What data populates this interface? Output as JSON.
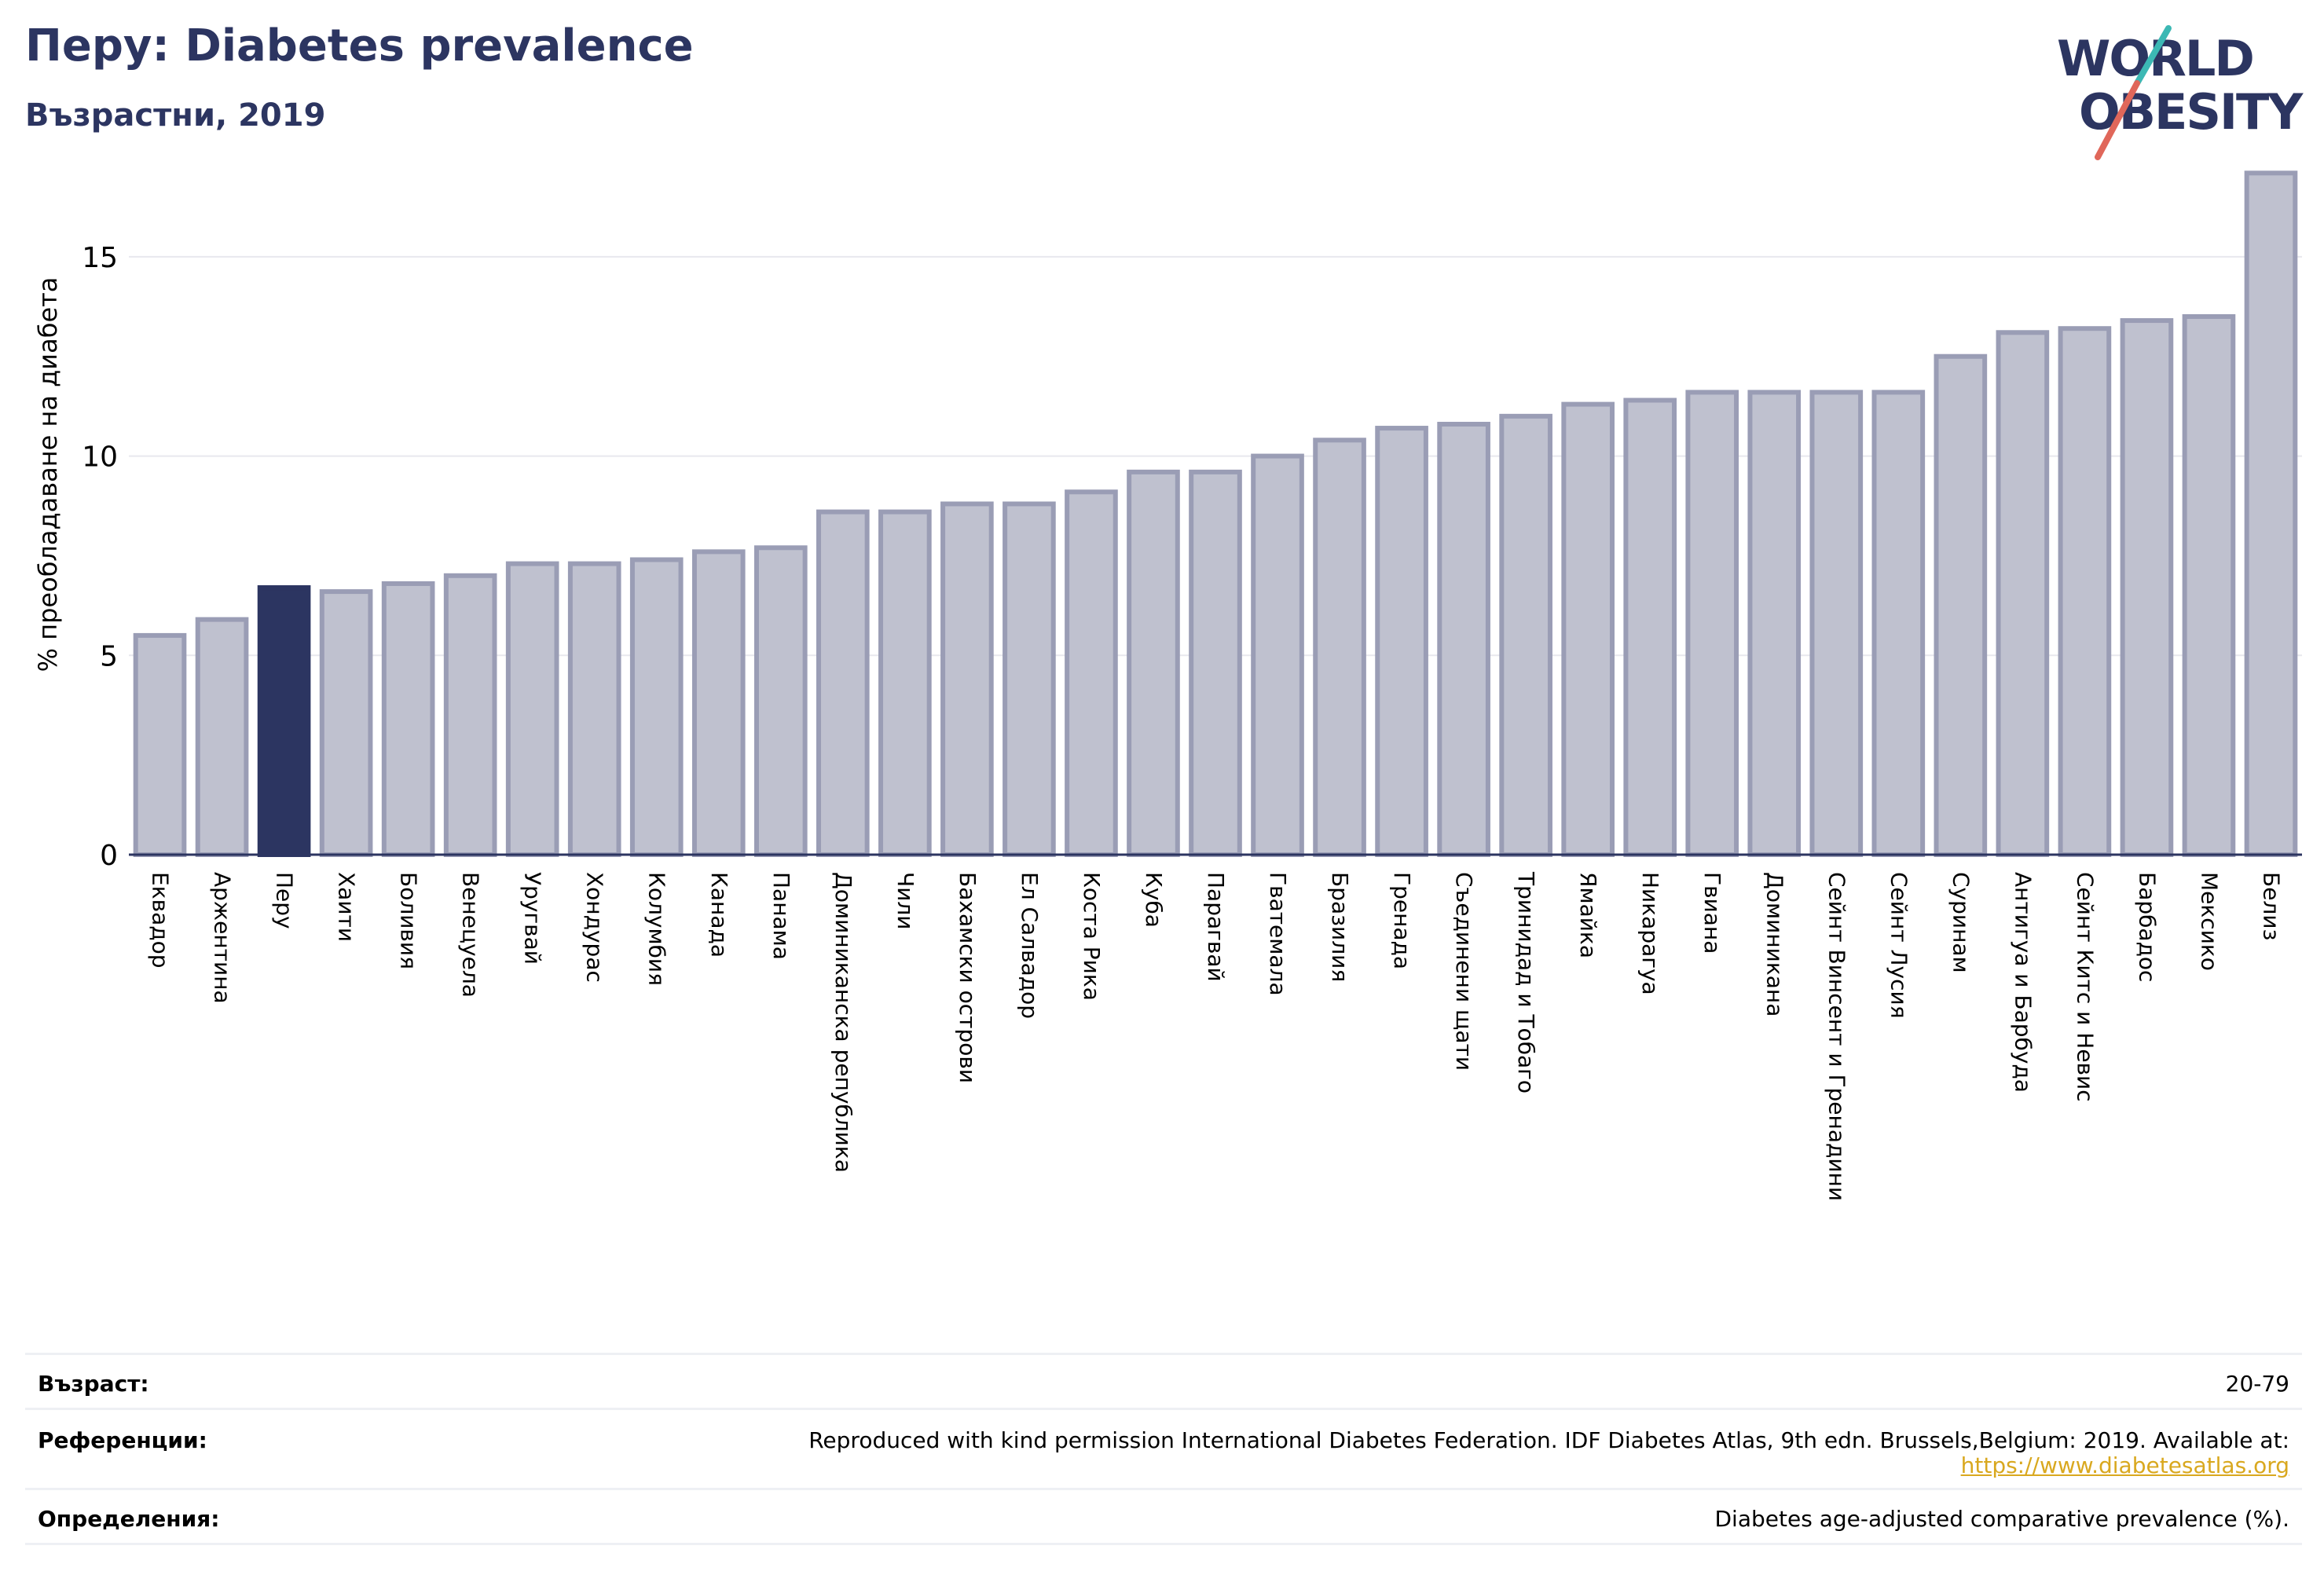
{
  "header": {
    "title": "Перу: Diabetes prevalence",
    "subtitle": "Възрастни, 2019"
  },
  "logo": {
    "line1": "WORLD",
    "line2": "OBESITY",
    "colors": {
      "text": "#2c3561",
      "slash_teal": "#3cb8b4",
      "slash_red": "#e0675a"
    }
  },
  "colors": {
    "bar_fill": "#bfc1cf",
    "bar_stroke": "#9a9db5",
    "highlight_fill": "#2c3561",
    "grid": "#e8e8ee",
    "axis": "#2c3561"
  },
  "chart_data": {
    "type": "bar",
    "title": "",
    "xlabel": "",
    "ylabel": "% преобладаване на диабета",
    "ylim": [
      0,
      17.5
    ],
    "yticks": [
      0,
      5,
      10,
      15
    ],
    "grid": true,
    "highlight": "Перу",
    "categories": [
      "Еквадор",
      "Аржентина",
      "Перу",
      "Хаити",
      "Боливия",
      "Венецуела",
      "Уругвай",
      "Хондурас",
      "Колумбия",
      "Канада",
      "Панама",
      "Доминиканска република",
      "Чили",
      "Бахамски острови",
      "Ел Салвадор",
      "Коста Рика",
      "Куба",
      "Парагвай",
      "Гватемала",
      "Бразилия",
      "Гренада",
      "Съединени щати",
      "Тринидад и Тобаго",
      "Ямайка",
      "Никарагуа",
      "Гвиана",
      "Доминикана",
      "Сейнт Винсент и Гренадини",
      "Сейнт Лусия",
      "Суринам",
      "Антигуа и Барбуда",
      "Сейнт Китс и Невис",
      "Барбадос",
      "Мексико",
      "Белиз"
    ],
    "values": [
      5.5,
      5.9,
      6.7,
      6.6,
      6.8,
      7.0,
      7.3,
      7.3,
      7.4,
      7.6,
      7.7,
      8.6,
      8.6,
      8.8,
      8.8,
      9.1,
      9.6,
      9.6,
      10.0,
      10.4,
      10.7,
      10.8,
      11.0,
      11.3,
      11.4,
      11.6,
      11.6,
      11.6,
      11.6,
      12.5,
      13.1,
      13.2,
      13.4,
      13.5,
      17.1
    ]
  },
  "footer": {
    "age_label": "Възраст:",
    "age_value": "20-79",
    "ref_label": "Референции:",
    "ref_value": "Reproduced with kind permission International Diabetes Federation. IDF Diabetes Atlas, 9th edn. Brussels,Belgium: 2019. Available at:",
    "ref_link": "https://www.diabetesatlas.org",
    "def_label": "Определения:",
    "def_value": "Diabetes age-adjusted comparative prevalence (%)."
  }
}
